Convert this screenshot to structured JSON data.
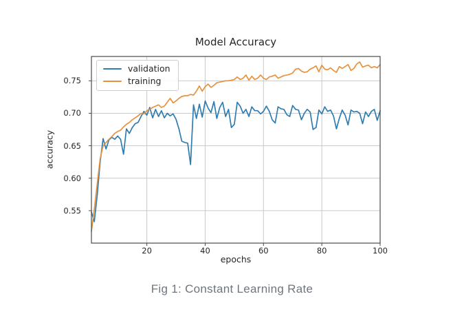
{
  "figure": {
    "title": "Model Accuracy",
    "xlabel": "epochs",
    "ylabel": "accuracy",
    "caption": "Fig 1: Constant Learning Rate"
  },
  "colors": {
    "validation": "#2e7cb0",
    "training": "#e8913c",
    "grid": "#c9c9c9",
    "spine": "#4a4a4a",
    "caption_text": "#6f757d"
  },
  "chart_data": {
    "type": "line",
    "title": "Model Accuracy",
    "xlabel": "epochs",
    "ylabel": "accuracy",
    "xlim": [
      1,
      100
    ],
    "ylim": [
      0.5,
      0.7875
    ],
    "xticks": [
      20,
      40,
      60,
      80,
      100
    ],
    "xticklabels": [
      "20",
      "40",
      "60",
      "80",
      "100"
    ],
    "yticks": [
      0.55,
      0.6,
      0.65,
      0.7,
      0.75
    ],
    "yticklabels": [
      "0.55",
      "0.60",
      "0.65",
      "0.70",
      "0.75"
    ],
    "grid": true,
    "legend_position": "upper left",
    "x": [
      1,
      2,
      3,
      4,
      5,
      6,
      7,
      8,
      9,
      10,
      11,
      12,
      13,
      14,
      15,
      16,
      17,
      18,
      19,
      20,
      21,
      22,
      23,
      24,
      25,
      26,
      27,
      28,
      29,
      30,
      31,
      32,
      33,
      34,
      35,
      36,
      37,
      38,
      39,
      40,
      41,
      42,
      43,
      44,
      45,
      46,
      47,
      48,
      49,
      50,
      51,
      52,
      53,
      54,
      55,
      56,
      57,
      58,
      59,
      60,
      61,
      62,
      63,
      64,
      65,
      66,
      67,
      68,
      69,
      70,
      71,
      72,
      73,
      74,
      75,
      76,
      77,
      78,
      79,
      80,
      81,
      82,
      83,
      84,
      85,
      86,
      87,
      88,
      89,
      90,
      91,
      92,
      93,
      94,
      95,
      96,
      97,
      98,
      99,
      100
    ],
    "series": [
      {
        "name": "validation",
        "color": "#2e7cb0",
        "values": [
          0.548,
          0.533,
          0.575,
          0.625,
          0.661,
          0.645,
          0.659,
          0.663,
          0.66,
          0.665,
          0.66,
          0.637,
          0.676,
          0.669,
          0.678,
          0.684,
          0.686,
          0.695,
          0.703,
          0.697,
          0.709,
          0.693,
          0.706,
          0.695,
          0.704,
          0.693,
          0.7,
          0.696,
          0.699,
          0.691,
          0.676,
          0.657,
          0.655,
          0.654,
          0.621,
          0.713,
          0.692,
          0.714,
          0.694,
          0.719,
          0.708,
          0.701,
          0.718,
          0.692,
          0.709,
          0.717,
          0.695,
          0.706,
          0.678,
          0.683,
          0.717,
          0.711,
          0.7,
          0.706,
          0.695,
          0.71,
          0.704,
          0.704,
          0.699,
          0.703,
          0.711,
          0.703,
          0.69,
          0.685,
          0.71,
          0.707,
          0.706,
          0.698,
          0.695,
          0.712,
          0.706,
          0.705,
          0.69,
          0.7,
          0.706,
          0.702,
          0.675,
          0.678,
          0.705,
          0.699,
          0.71,
          0.703,
          0.705,
          0.696,
          0.676,
          0.692,
          0.705,
          0.697,
          0.682,
          0.705,
          0.702,
          0.703,
          0.7,
          0.684,
          0.702,
          0.695,
          0.703,
          0.706,
          0.689,
          0.704
        ]
      },
      {
        "name": "training",
        "color": "#e8913c",
        "values": [
          0.518,
          0.552,
          0.592,
          0.63,
          0.65,
          0.655,
          0.66,
          0.664,
          0.669,
          0.672,
          0.674,
          0.679,
          0.683,
          0.686,
          0.69,
          0.693,
          0.696,
          0.7,
          0.699,
          0.704,
          0.706,
          0.709,
          0.711,
          0.713,
          0.709,
          0.711,
          0.717,
          0.723,
          0.716,
          0.719,
          0.723,
          0.726,
          0.727,
          0.727,
          0.729,
          0.728,
          0.734,
          0.742,
          0.734,
          0.741,
          0.745,
          0.74,
          0.743,
          0.747,
          0.748,
          0.749,
          0.75,
          0.75,
          0.751,
          0.752,
          0.756,
          0.752,
          0.754,
          0.759,
          0.751,
          0.757,
          0.752,
          0.754,
          0.759,
          0.754,
          0.752,
          0.756,
          0.757,
          0.759,
          0.754,
          0.756,
          0.758,
          0.759,
          0.76,
          0.762,
          0.768,
          0.769,
          0.765,
          0.763,
          0.764,
          0.768,
          0.77,
          0.773,
          0.764,
          0.774,
          0.768,
          0.767,
          0.77,
          0.766,
          0.763,
          0.772,
          0.769,
          0.772,
          0.775,
          0.766,
          0.769,
          0.776,
          0.779,
          0.771,
          0.773,
          0.774,
          0.77,
          0.772,
          0.77,
          0.775
        ]
      }
    ]
  }
}
